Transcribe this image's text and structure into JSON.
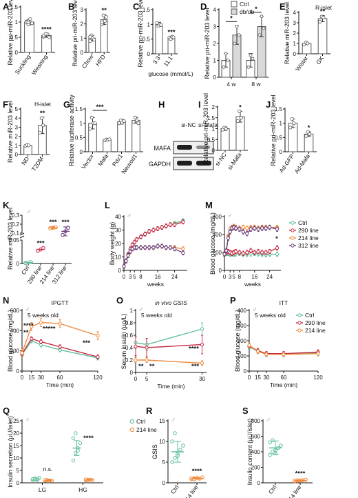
{
  "figure": {
    "sex_symbol": "♂",
    "colors": {
      "ctrl": "#5fbf9a",
      "l290": "#c62d46",
      "l214": "#f08a3c",
      "l312": "#6a3f7b",
      "bar_gray": "#7f7f7f",
      "bar_dark": "#444444",
      "mafa_blot": "#1e1e1e",
      "gapdh_blot": "#1e1e1e"
    },
    "blot": {
      "label": "H",
      "lanes": [
        "si-NC",
        "si-Mafa"
      ],
      "rows": [
        "MAFA",
        "GAPDH"
      ]
    }
  },
  "chart_data": [
    {
      "id": "A",
      "type": "bar",
      "ylabel": "Relative pri-miR-203 level",
      "ylim": [
        0,
        1.5
      ],
      "yticks": [
        0,
        0.5,
        1.0,
        1.5
      ],
      "categories": [
        "Suckling",
        "Weaning"
      ],
      "values": [
        1.0,
        0.56
      ],
      "errors": [
        0.09,
        0.06
      ],
      "points": [
        [
          1.02,
          0.92,
          1.1,
          0.96,
          1.0,
          0.99
        ],
        [
          0.52,
          0.58,
          0.6,
          0.5,
          0.55,
          0.61
        ]
      ],
      "stars": [
        "",
        "****"
      ],
      "xrot": true
    },
    {
      "id": "B",
      "type": "bar",
      "ylabel": "Relative pri-miR-203 level",
      "ylim": [
        0,
        3
      ],
      "yticks": [
        0,
        1,
        2,
        3
      ],
      "categories": [
        "Chow",
        "HFD"
      ],
      "values": [
        1.0,
        2.3
      ],
      "errors": [
        0.2,
        0.35
      ],
      "points": [
        [
          0.8,
          1.2,
          1.0,
          0.9,
          1.1
        ],
        [
          2.0,
          2.6,
          2.2,
          2.5,
          2.1
        ]
      ],
      "stars": [
        "",
        "**"
      ],
      "xrot": true
    },
    {
      "id": "C",
      "type": "bar",
      "ylabel": "Relative pri-miR-203 level",
      "ylim": [
        0,
        1.5
      ],
      "yticks": [
        0,
        0.5,
        1.0,
        1.5
      ],
      "categories": [
        "3.3",
        "11.1"
      ],
      "values": [
        1.0,
        0.55
      ],
      "errors": [
        0.07,
        0.05
      ],
      "points": [
        [
          1.05,
          0.95,
          1.0,
          0.98
        ],
        [
          0.55,
          0.5,
          0.58,
          0.56
        ]
      ],
      "stars": [
        "",
        "***"
      ],
      "xrot": true,
      "xlabel": "glucose (mmol/L)"
    },
    {
      "id": "D",
      "type": "groupbar",
      "ylabel": "Relative pri-miR-203 level",
      "ylim": [
        0,
        4
      ],
      "yticks": [
        0,
        1,
        2,
        3,
        4
      ],
      "groups": [
        "4 w",
        "8 w"
      ],
      "series": [
        {
          "name": "Ctrl",
          "values": [
            1.0,
            1.0
          ],
          "errors": [
            0.4,
            0.4
          ]
        },
        {
          "name": "db/db",
          "values": [
            2.5,
            3.0
          ],
          "errors": [
            0.55,
            0.6
          ]
        }
      ],
      "points": [
        [
          [
            0.6,
            1.4,
            1.0
          ],
          [
            2.0,
            3.0,
            2.5
          ]
        ],
        [
          [
            0.6,
            1.3,
            1.1
          ],
          [
            2.5,
            3.6,
            2.9
          ]
        ]
      ],
      "stars": [
        "*",
        "*"
      ]
    },
    {
      "id": "E",
      "type": "bar",
      "title": "R-islet",
      "ylabel": "Relative miR-203 level",
      "ylim": [
        0,
        4
      ],
      "yticks": [
        0,
        1,
        2,
        3,
        4
      ],
      "categories": [
        "Wistar",
        "GK"
      ],
      "values": [
        1.0,
        3.4
      ],
      "errors": [
        0.1,
        0.3
      ],
      "points": [
        [
          0.9,
          1.1,
          1.0
        ],
        [
          3.1,
          3.6,
          3.5
        ]
      ],
      "stars": [
        "",
        "**"
      ],
      "xrot": true
    },
    {
      "id": "F",
      "type": "bar",
      "title": "H-islet",
      "ylabel": "Relative miR-203 level",
      "ylim": [
        0,
        5
      ],
      "yticks": [
        0,
        1,
        2,
        3,
        4,
        5
      ],
      "categories": [
        "ND",
        "T2DM"
      ],
      "values": [
        1.0,
        3.2
      ],
      "errors": [
        0.1,
        0.9
      ],
      "points": [
        [
          0.95,
          1.05,
          1.0
        ],
        [
          2.4,
          4.0,
          3.2
        ]
      ],
      "stars": [
        "",
        "**"
      ],
      "xrot": true
    },
    {
      "id": "G",
      "type": "bar",
      "ylabel": "Relative luciferase activity",
      "ylim": [
        0,
        1.5
      ],
      "yticks": [
        0,
        0.5,
        1.0,
        1.5
      ],
      "categories": [
        "Vector",
        "Mafa",
        "Pdx1",
        "Neurod1"
      ],
      "values": [
        1.0,
        0.42,
        1.05,
        1.1
      ],
      "errors": [
        0.2,
        0.03,
        0.08,
        0.1
      ],
      "points": [
        [
          0.8,
          1.2,
          1.0,
          1.0
        ],
        [
          0.4,
          0.43,
          0.42,
          0.44
        ],
        [
          1.0,
          1.1,
          1.02,
          1.08
        ],
        [
          1.05,
          1.2,
          1.1,
          1.0
        ]
      ],
      "bracket": [
        0,
        1,
        "***"
      ],
      "xrot": true
    },
    {
      "id": "I",
      "type": "bar",
      "ylabel": "Relative pri-miR-203 level",
      "ylim": [
        0,
        2
      ],
      "yticks": [
        0,
        0.5,
        1.0,
        1.5,
        2.0
      ],
      "categories": [
        "si-NC",
        "si-Mafa"
      ],
      "values": [
        1.0,
        1.55
      ],
      "errors": [
        0.08,
        0.25
      ],
      "points": [
        [
          0.95,
          1.05,
          1.0
        ],
        [
          1.35,
          1.8,
          1.5
        ]
      ],
      "stars": [
        "",
        "*"
      ],
      "xrot": true
    },
    {
      "id": "J",
      "type": "bar",
      "ylabel": "Relative pri-miR-203 level",
      "ylim": [
        0,
        1.5
      ],
      "yticks": [
        0,
        0.5,
        1.0,
        1.5
      ],
      "categories": [
        "Ad-GFP",
        "Ad-Mafa"
      ],
      "values": [
        1.0,
        0.62
      ],
      "errors": [
        0.15,
        0.08
      ],
      "points": [
        [
          0.85,
          1.15,
          1.0
        ],
        [
          0.55,
          0.7,
          0.62
        ]
      ],
      "stars": [
        "",
        "*"
      ],
      "xrot": true
    },
    {
      "id": "K",
      "type": "scatter-broken",
      "ylabel": "Relative miR-203 level",
      "yticks_low": [
        0,
        0.05,
        0.1
      ],
      "yticks_high": [
        0.1,
        0.2,
        0.3
      ],
      "ytick_labels_low": [
        "0",
        "0.05",
        ""
      ],
      "ytick_labels_high": [
        "0.1",
        "0.2",
        "0.3"
      ],
      "categories": [
        "Ctrl",
        "290 line",
        "214 line",
        "312 line"
      ],
      "values": [
        0.002,
        0.03,
        0.16,
        0.12
      ],
      "errors": [
        0.001,
        0.003,
        0.01,
        0.05
      ],
      "points": [
        [
          0.001,
          0.002,
          0.003
        ],
        [
          0.027,
          0.03,
          0.033
        ],
        [
          0.155,
          0.16,
          0.165
        ],
        [
          0.08,
          0.12,
          0.16
        ]
      ],
      "stars": [
        "",
        "***",
        "***",
        "***"
      ]
    },
    {
      "id": "L",
      "type": "line",
      "ylabel": "Body weight (g)",
      "xlabel": "",
      "ylim": [
        0,
        40
      ],
      "yticks": [
        0,
        10,
        20,
        30,
        40
      ],
      "xlim": [
        0,
        30
      ],
      "xticks": [
        0,
        3,
        5,
        8,
        16,
        24
      ],
      "x": [
        0,
        1,
        2,
        3,
        4,
        5,
        6,
        8,
        10,
        12,
        14,
        16,
        18,
        20,
        22,
        24,
        28
      ],
      "series": [
        {
          "key": "ctrl",
          "values": [
            3,
            7,
            12,
            16,
            19,
            21,
            23,
            25,
            27,
            29,
            30,
            31,
            32,
            33,
            34,
            35,
            37
          ],
          "err": 1.5
        },
        {
          "key": "l290",
          "values": [
            3,
            7,
            12,
            16,
            19,
            21,
            23,
            25,
            27,
            29,
            30,
            31,
            32,
            33,
            34,
            34,
            36
          ],
          "err": 1.5
        },
        {
          "key": "l214",
          "values": [
            3,
            7,
            11,
            14,
            16,
            17,
            17,
            17,
            17,
            17,
            17,
            18,
            18,
            17,
            17,
            17,
            16
          ],
          "err": 1.5
        },
        {
          "key": "l312",
          "values": [
            3,
            7,
            11,
            14,
            16,
            17,
            17,
            17,
            17,
            17,
            17,
            18,
            18,
            17,
            17,
            16,
            13
          ],
          "err": 1.5
        }
      ],
      "xaxis_title": "weeks"
    },
    {
      "id": "M",
      "type": "line",
      "ylabel": "Blood glucose (mg/dL)",
      "ylim": [
        0,
        600
      ],
      "yticks": [
        0,
        200,
        400,
        600
      ],
      "xlim": [
        0,
        30
      ],
      "xticks": [
        0,
        3,
        5,
        8,
        16,
        24
      ],
      "x": [
        0,
        1,
        2,
        3,
        4,
        5,
        6,
        8,
        10,
        12,
        14,
        16,
        18,
        20,
        22,
        24,
        28
      ],
      "series": [
        {
          "key": "ctrl",
          "values": [
            180,
            190,
            190,
            180,
            185,
            180,
            185,
            190,
            180,
            180,
            185,
            190,
            185,
            180,
            175,
            180,
            180
          ],
          "err": 25
        },
        {
          "key": "l290",
          "values": [
            180,
            200,
            210,
            200,
            190,
            200,
            210,
            200,
            190,
            200,
            220,
            200,
            210,
            200,
            200,
            210,
            250
          ],
          "err": 25
        },
        {
          "key": "l214",
          "values": [
            180,
            220,
            380,
            460,
            480,
            490,
            480,
            470,
            480,
            470,
            480,
            480,
            470,
            480,
            480,
            480,
            480
          ],
          "err": 25
        },
        {
          "key": "l312",
          "values": [
            180,
            220,
            360,
            430,
            470,
            480,
            470,
            460,
            430,
            410,
            460,
            470,
            460,
            470,
            470,
            480,
            460
          ],
          "err": 25
        }
      ],
      "xaxis_title": "weeks",
      "legend": [
        "Ctrl",
        "290 line",
        "214 line",
        "312 line"
      ],
      "annotation": "*"
    },
    {
      "id": "N",
      "type": "line",
      "title": "IPGTT",
      "ylabel": "Blood glucose (mg/dL)",
      "ylim": [
        0,
        600
      ],
      "yticks": [
        0,
        200,
        400,
        600
      ],
      "xlim": [
        0,
        120
      ],
      "xticks": [
        0,
        15,
        30,
        60,
        120
      ],
      "xtick_labels": [
        "0",
        "15",
        "30",
        "60",
        "120"
      ],
      "x": [
        0,
        15,
        30,
        60,
        120
      ],
      "series": [
        {
          "key": "ctrl",
          "values": [
            160,
            300,
            260,
            210,
            130
          ],
          "err": 20
        },
        {
          "key": "l290",
          "values": [
            170,
            320,
            290,
            240,
            140
          ],
          "err": 20
        },
        {
          "key": "l214",
          "values": [
            180,
            440,
            480,
            470,
            350
          ],
          "err": 40
        }
      ],
      "xaxis_title": "Time (min)",
      "note": "5 weeks old",
      "star_labels": [
        "****",
        "**",
        "*****",
        "***"
      ]
    },
    {
      "id": "O",
      "type": "line",
      "title": "in vivo GSIS",
      "ylabel": "Serum insulin (μg/L)",
      "ylim": [
        0,
        1.0
      ],
      "yticks": [
        0,
        0.2,
        0.4,
        0.6,
        0.8,
        1.0
      ],
      "xlim": [
        0,
        32
      ],
      "xticks": [
        0,
        5,
        30
      ],
      "x": [
        0,
        5,
        30
      ],
      "series": [
        {
          "key": "ctrl",
          "values": [
            0.48,
            0.45,
            0.7
          ],
          "err": 0.1
        },
        {
          "key": "l290",
          "values": [
            0.42,
            0.4,
            0.45
          ],
          "err": 0.15
        },
        {
          "key": "l214",
          "values": [
            0.2,
            0.2,
            0.15
          ],
          "err": 0.04
        }
      ],
      "xaxis_title": "Time (min)",
      "note": "5 weeks old",
      "star_labels": [
        "**",
        "**",
        "****",
        "***"
      ]
    },
    {
      "id": "P",
      "type": "line",
      "title": "ITT",
      "ylabel": "Blood glucose (mg/dL)",
      "ylim": [
        0,
        400
      ],
      "yticks": [
        0,
        100,
        200,
        300,
        400
      ],
      "xlim": [
        0,
        120
      ],
      "xticks": [
        0,
        15,
        30,
        60,
        120
      ],
      "x": [
        0,
        15,
        30,
        60,
        120
      ],
      "series": [
        {
          "key": "ctrl",
          "values": [
            160,
            130,
            110,
            110,
            120
          ],
          "err": 15
        },
        {
          "key": "l290",
          "values": [
            165,
            135,
            115,
            115,
            125
          ],
          "err": 15
        },
        {
          "key": "l214",
          "values": [
            170,
            130,
            110,
            110,
            115
          ],
          "err": 15
        }
      ],
      "xaxis_title": "Time (min)",
      "note": "5 weeks old",
      "legend": [
        "Ctrl",
        "290 line",
        "214 line"
      ]
    },
    {
      "id": "Q",
      "type": "dotgroup",
      "ylabel": "Insulin secretion (μU/islet)",
      "ylim": [
        0,
        25
      ],
      "yticks": [
        0,
        5,
        10,
        15,
        20,
        25
      ],
      "groups": [
        "LG",
        "HG"
      ],
      "series": [
        "Ctrl",
        "214 line"
      ],
      "values": [
        [
          1.5,
          1.0
        ],
        [
          14,
          1.2
        ]
      ],
      "errors": [
        [
          0.5,
          0.3
        ],
        [
          3,
          0.3
        ]
      ],
      "points": [
        [
          [
            1.2,
            1.8,
            1.0,
            2.0,
            1.5,
            1.4
          ],
          [
            0.9,
            1.1,
            1.0,
            0.8,
            1.2,
            1.0
          ]
        ],
        [
          [
            9,
            12,
            14,
            16,
            18,
            20,
            13
          ],
          [
            1.0,
            1.2,
            1.3,
            1.1,
            1.4,
            1.0
          ]
        ]
      ],
      "labels": [
        "n.s.",
        "****"
      ],
      "legend": [
        "Ctrl",
        "214 line"
      ]
    },
    {
      "id": "R",
      "type": "dot",
      "ylabel": "GSIS",
      "ylim": [
        0,
        15
      ],
      "yticks": [
        0,
        5,
        10,
        15
      ],
      "categories": [
        "Ctrl",
        "214 line"
      ],
      "values": [
        7.5,
        1.1
      ],
      "errors": [
        2.5,
        0.2
      ],
      "points": [
        [
          5,
          6,
          7,
          8,
          9,
          10,
          12,
          6.5
        ],
        [
          0.9,
          1.1,
          1.2,
          1.0,
          1.3,
          1.1,
          0.9
        ]
      ],
      "stars": [
        "",
        "****"
      ],
      "xrot": true
    },
    {
      "id": "S",
      "type": "dot",
      "ylabel": "Insulin content (μU/islet)",
      "ylim": [
        0,
        800
      ],
      "yticks": [
        0,
        200,
        400,
        600,
        800
      ],
      "categories": [
        "Ctrl",
        "214 line"
      ],
      "values": [
        450,
        30
      ],
      "errors": [
        90,
        8
      ],
      "points": [
        [
          360,
          400,
          420,
          450,
          480,
          520,
          550,
          380
        ],
        [
          20,
          25,
          30,
          35,
          40,
          28,
          32
        ]
      ],
      "stars": [
        "",
        "****"
      ],
      "xrot": true
    }
  ]
}
